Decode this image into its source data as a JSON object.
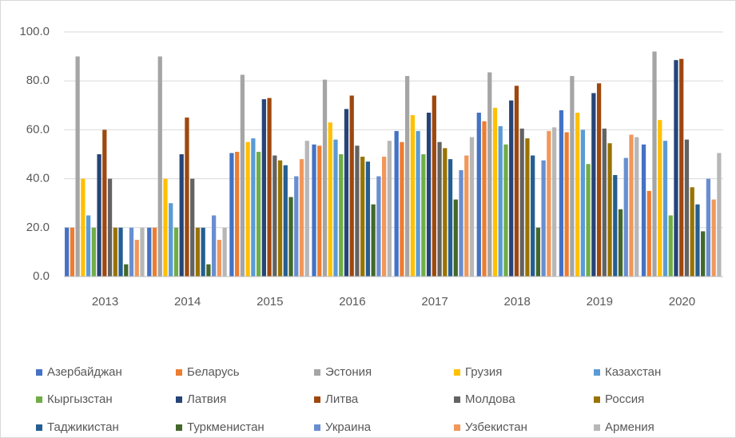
{
  "chart_data": {
    "type": "bar",
    "categories": [
      "2013",
      "2014",
      "2015",
      "2016",
      "2017",
      "2018",
      "2019",
      "2020"
    ],
    "ylim": [
      0,
      100
    ],
    "yticks": [
      {
        "value": 0,
        "label": "0.0"
      },
      {
        "value": 20,
        "label": "20.0"
      },
      {
        "value": 40,
        "label": "40.0"
      },
      {
        "value": 60,
        "label": "60.0"
      },
      {
        "value": 80,
        "label": "80.0"
      },
      {
        "value": 100,
        "label": "100.0"
      }
    ],
    "grid": true,
    "legend": "bottom",
    "series": [
      {
        "name": "Азербайджан",
        "color": "#4472c4",
        "values": [
          20,
          20,
          50.5,
          54,
          59.5,
          67,
          68,
          54
        ]
      },
      {
        "name": "Беларусь",
        "color": "#ed7d31",
        "values": [
          20,
          20,
          51,
          53.5,
          55,
          63.5,
          59,
          35
        ]
      },
      {
        "name": "Эстония",
        "color": "#a5a5a5",
        "values": [
          90,
          90,
          82.5,
          80.5,
          82,
          83.5,
          82,
          92
        ]
      },
      {
        "name": "Грузия",
        "color": "#ffc000",
        "values": [
          40,
          40,
          55,
          63,
          66,
          69,
          67,
          64
        ]
      },
      {
        "name": "Казахстан",
        "color": "#5b9bd5",
        "values": [
          25,
          30,
          56.5,
          56,
          59.5,
          61.5,
          60,
          55.5
        ]
      },
      {
        "name": "Кыргызстан",
        "color": "#70ad47",
        "values": [
          20,
          20,
          51,
          50,
          50,
          54,
          46,
          25
        ]
      },
      {
        "name": "Латвия",
        "color": "#264478",
        "values": [
          50,
          50,
          72.5,
          68.5,
          67,
          72,
          75,
          88.5
        ]
      },
      {
        "name": "Литва",
        "color": "#9e480e",
        "values": [
          60,
          65,
          73,
          74,
          74,
          78,
          79,
          89
        ]
      },
      {
        "name": "Молдова",
        "color": "#636363",
        "values": [
          40,
          40,
          49.5,
          53.5,
          55,
          60.5,
          60.5,
          56
        ]
      },
      {
        "name": "Россия",
        "color": "#997300",
        "values": [
          20,
          20,
          47.5,
          49,
          52.5,
          56.5,
          54.5,
          36.5
        ]
      },
      {
        "name": "Таджикистан",
        "color": "#255e91",
        "values": [
          20,
          20,
          45.5,
          47,
          48,
          49.5,
          41.5,
          29.5
        ]
      },
      {
        "name": "Туркменистан",
        "color": "#43682b",
        "values": [
          5,
          5,
          32.5,
          29.5,
          31.5,
          20,
          27.5,
          18.5
        ]
      },
      {
        "name": "Украина",
        "color": "#698ed0",
        "values": [
          20,
          25,
          41,
          41,
          43.5,
          47.5,
          48.5,
          40
        ]
      },
      {
        "name": "Узбекистан",
        "color": "#f1975a",
        "values": [
          15,
          15,
          48,
          49,
          49.5,
          59.5,
          58,
          31.5
        ]
      },
      {
        "name": "Армения",
        "color": "#b7b7b7",
        "values": [
          20,
          20,
          55.5,
          55.5,
          57,
          61,
          57,
          50.5
        ]
      }
    ]
  }
}
